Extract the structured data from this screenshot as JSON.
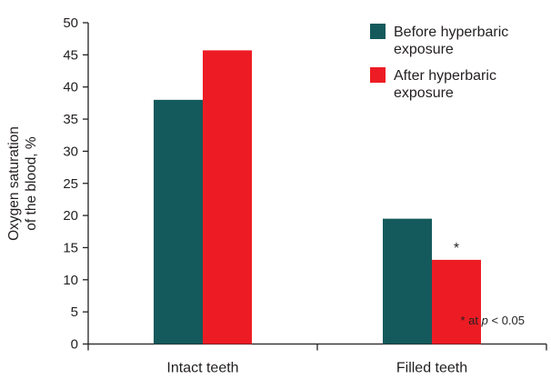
{
  "chart_data": {
    "type": "bar",
    "categories": [
      "Intact teeth",
      "Filled teeth"
    ],
    "series": [
      {
        "name": "Before hyperbaric exposure",
        "legend_lines": [
          "Before hyperbaric",
          "exposure"
        ],
        "color": "#145a5c",
        "values": [
          38,
          19.5
        ]
      },
      {
        "name": "After hyperbaric exposure",
        "legend_lines": [
          "After hyperbaric",
          "exposure"
        ],
        "color": "#ed1c24",
        "values": [
          45.7,
          13.1
        ]
      }
    ],
    "ylabel_lines": [
      "Oxygen saturation",
      "of the blood, %"
    ],
    "ylim": [
      0,
      50
    ],
    "yticks": [
      0,
      5,
      10,
      15,
      20,
      25,
      30,
      35,
      40,
      45,
      50
    ],
    "grid": false,
    "legend_position": "top-right",
    "significance_marks": [
      {
        "category_index": 1,
        "series_index": 1,
        "text": "*"
      }
    ],
    "footnote": "* at p < 0.05"
  }
}
